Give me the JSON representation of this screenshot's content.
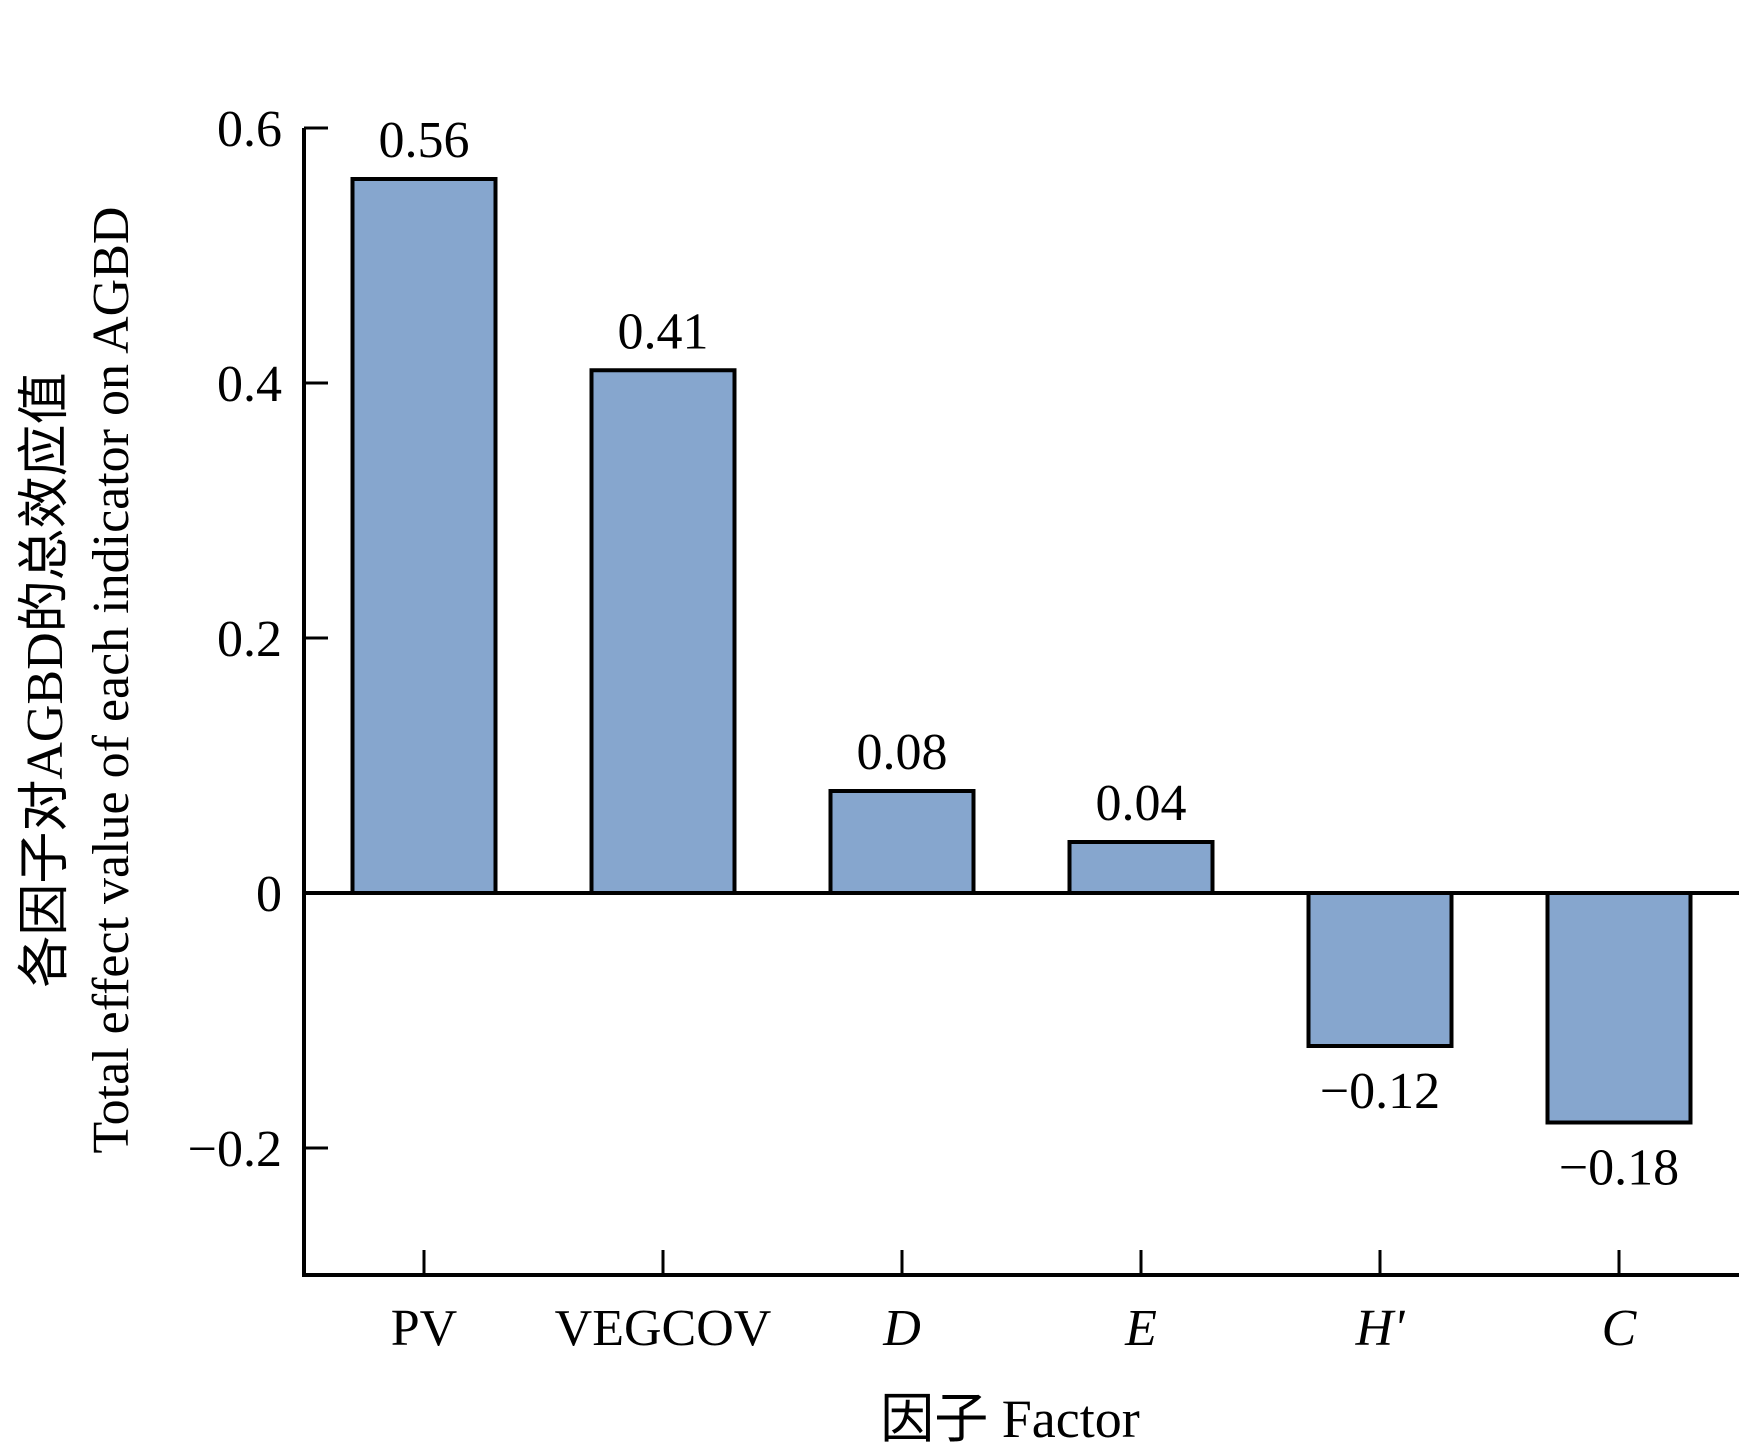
{
  "chart_data": {
    "type": "bar",
    "title": "",
    "categories": [
      "PV",
      "VEGCOV",
      "D",
      "E",
      "H'",
      "C"
    ],
    "category_italic": [
      false,
      false,
      true,
      true,
      true,
      true
    ],
    "values": [
      0.56,
      0.41,
      0.08,
      0.04,
      -0.12,
      -0.18
    ],
    "data_labels": [
      "0.56",
      "0.41",
      "0.08",
      "0.04",
      "−0.12",
      "−0.18"
    ],
    "xlabel": "因子 Factor",
    "ylabel_cn": "各因子对AGBD的总效应值",
    "ylabel_en": "Total effect value of each indicator on AGBD",
    "ylim": [
      -0.3,
      0.6
    ],
    "yticks": [
      0.6,
      0.4,
      0.2,
      0,
      -0.2
    ],
    "ytick_labels": [
      "0.6",
      "0.4",
      "0.2",
      "0",
      "−0.2"
    ],
    "grid": false,
    "legend": "none",
    "bar_color": "#86a6ce",
    "bar_edge_color": "#000000"
  }
}
